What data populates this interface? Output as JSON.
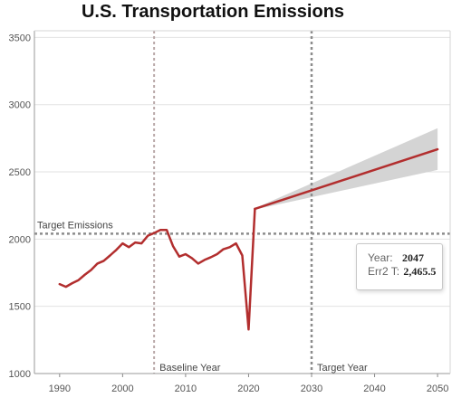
{
  "chart_data": {
    "type": "line",
    "title": "U.S. Transportation Emissions",
    "xlabel": "",
    "ylabel": "",
    "xlim": [
      1986,
      2052
    ],
    "ylim": [
      1000,
      3550
    ],
    "x_ticks": [
      1990,
      2000,
      2010,
      2020,
      2030,
      2040,
      2050
    ],
    "y_ticks": [
      1000,
      1500,
      2000,
      2500,
      3000,
      3500
    ],
    "grid": {
      "horizontal": true,
      "vertical": false
    },
    "line_color": "#b22e2e",
    "band_color": "#d4d4d4",
    "historical": {
      "x": [
        1990,
        1991,
        1992,
        1993,
        1994,
        1995,
        1996,
        1997,
        1998,
        1999,
        2000,
        2001,
        2002,
        2003,
        2004,
        2005,
        2006,
        2007,
        2008,
        2009,
        2010,
        2011,
        2012,
        2013,
        2014,
        2015,
        2016,
        2017,
        2018,
        2019,
        2020,
        2021
      ],
      "y": [
        1665,
        1645,
        1672,
        1695,
        1735,
        1770,
        1818,
        1838,
        1878,
        1920,
        1968,
        1940,
        1975,
        1968,
        2025,
        2045,
        2068,
        2068,
        1948,
        1870,
        1888,
        1858,
        1818,
        1845,
        1865,
        1888,
        1925,
        1940,
        1968,
        1878,
        1328,
        2225
      ]
    },
    "forecast": {
      "x": [
        2021,
        2050
      ],
      "y": [
        2225,
        2668
      ],
      "band_upper": [
        2230,
        2825
      ],
      "band_lower": [
        2220,
        2515
      ]
    },
    "reference_lines": [
      {
        "axis": "y",
        "value": 2040,
        "label": "Target Emissions"
      },
      {
        "axis": "x",
        "value": 2005,
        "label": "Baseline Year"
      },
      {
        "axis": "x",
        "value": 2030,
        "label": "Target Year"
      }
    ],
    "tooltip": {
      "year_label": "Year:",
      "year_value": "2047",
      "value_label": "Err2 T:",
      "value_value": "2,465.5"
    }
  }
}
